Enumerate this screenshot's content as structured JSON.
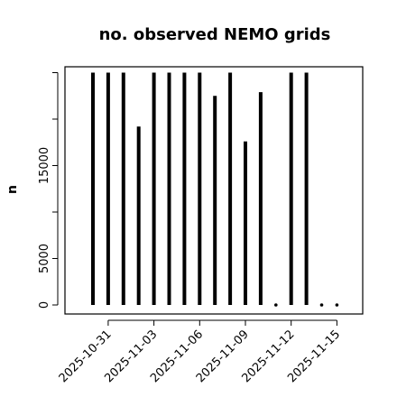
{
  "chart_data": {
    "type": "bar",
    "title": "no. observed NEMO grids",
    "xlabel": "",
    "ylabel": "n",
    "dates": [
      "2025-10-30",
      "2025-10-31",
      "2025-11-01",
      "2025-11-02",
      "2025-11-03",
      "2025-11-04",
      "2025-11-05",
      "2025-11-06",
      "2025-11-07",
      "2025-11-08",
      "2025-11-09",
      "2025-11-10",
      "2025-11-11",
      "2025-11-12",
      "2025-11-13",
      "2025-11-14",
      "2025-11-15"
    ],
    "values": [
      25000,
      25000,
      25000,
      19200,
      25000,
      25000,
      25000,
      25000,
      22500,
      25000,
      17600,
      22900,
      0,
      25000,
      25000,
      0,
      0
    ],
    "x_ticks": [
      "2025-10-31",
      "2025-11-03",
      "2025-11-06",
      "2025-11-09",
      "2025-11-12",
      "2025-11-15"
    ],
    "y_ticks": [
      0,
      5000,
      15000
    ],
    "y_tick_labels": [
      "0",
      "5000",
      "15000"
    ],
    "ylim": [
      -500,
      25000
    ],
    "grid": false
  }
}
